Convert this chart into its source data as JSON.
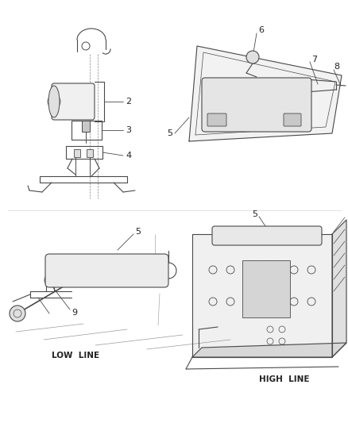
{
  "bg_color": "#ffffff",
  "line_color": "#4a4a4a",
  "label_color": "#222222",
  "font_size_num": 8,
  "font_size_caption": 7.5,
  "figsize": [
    4.39,
    5.33
  ],
  "dpi": 100
}
